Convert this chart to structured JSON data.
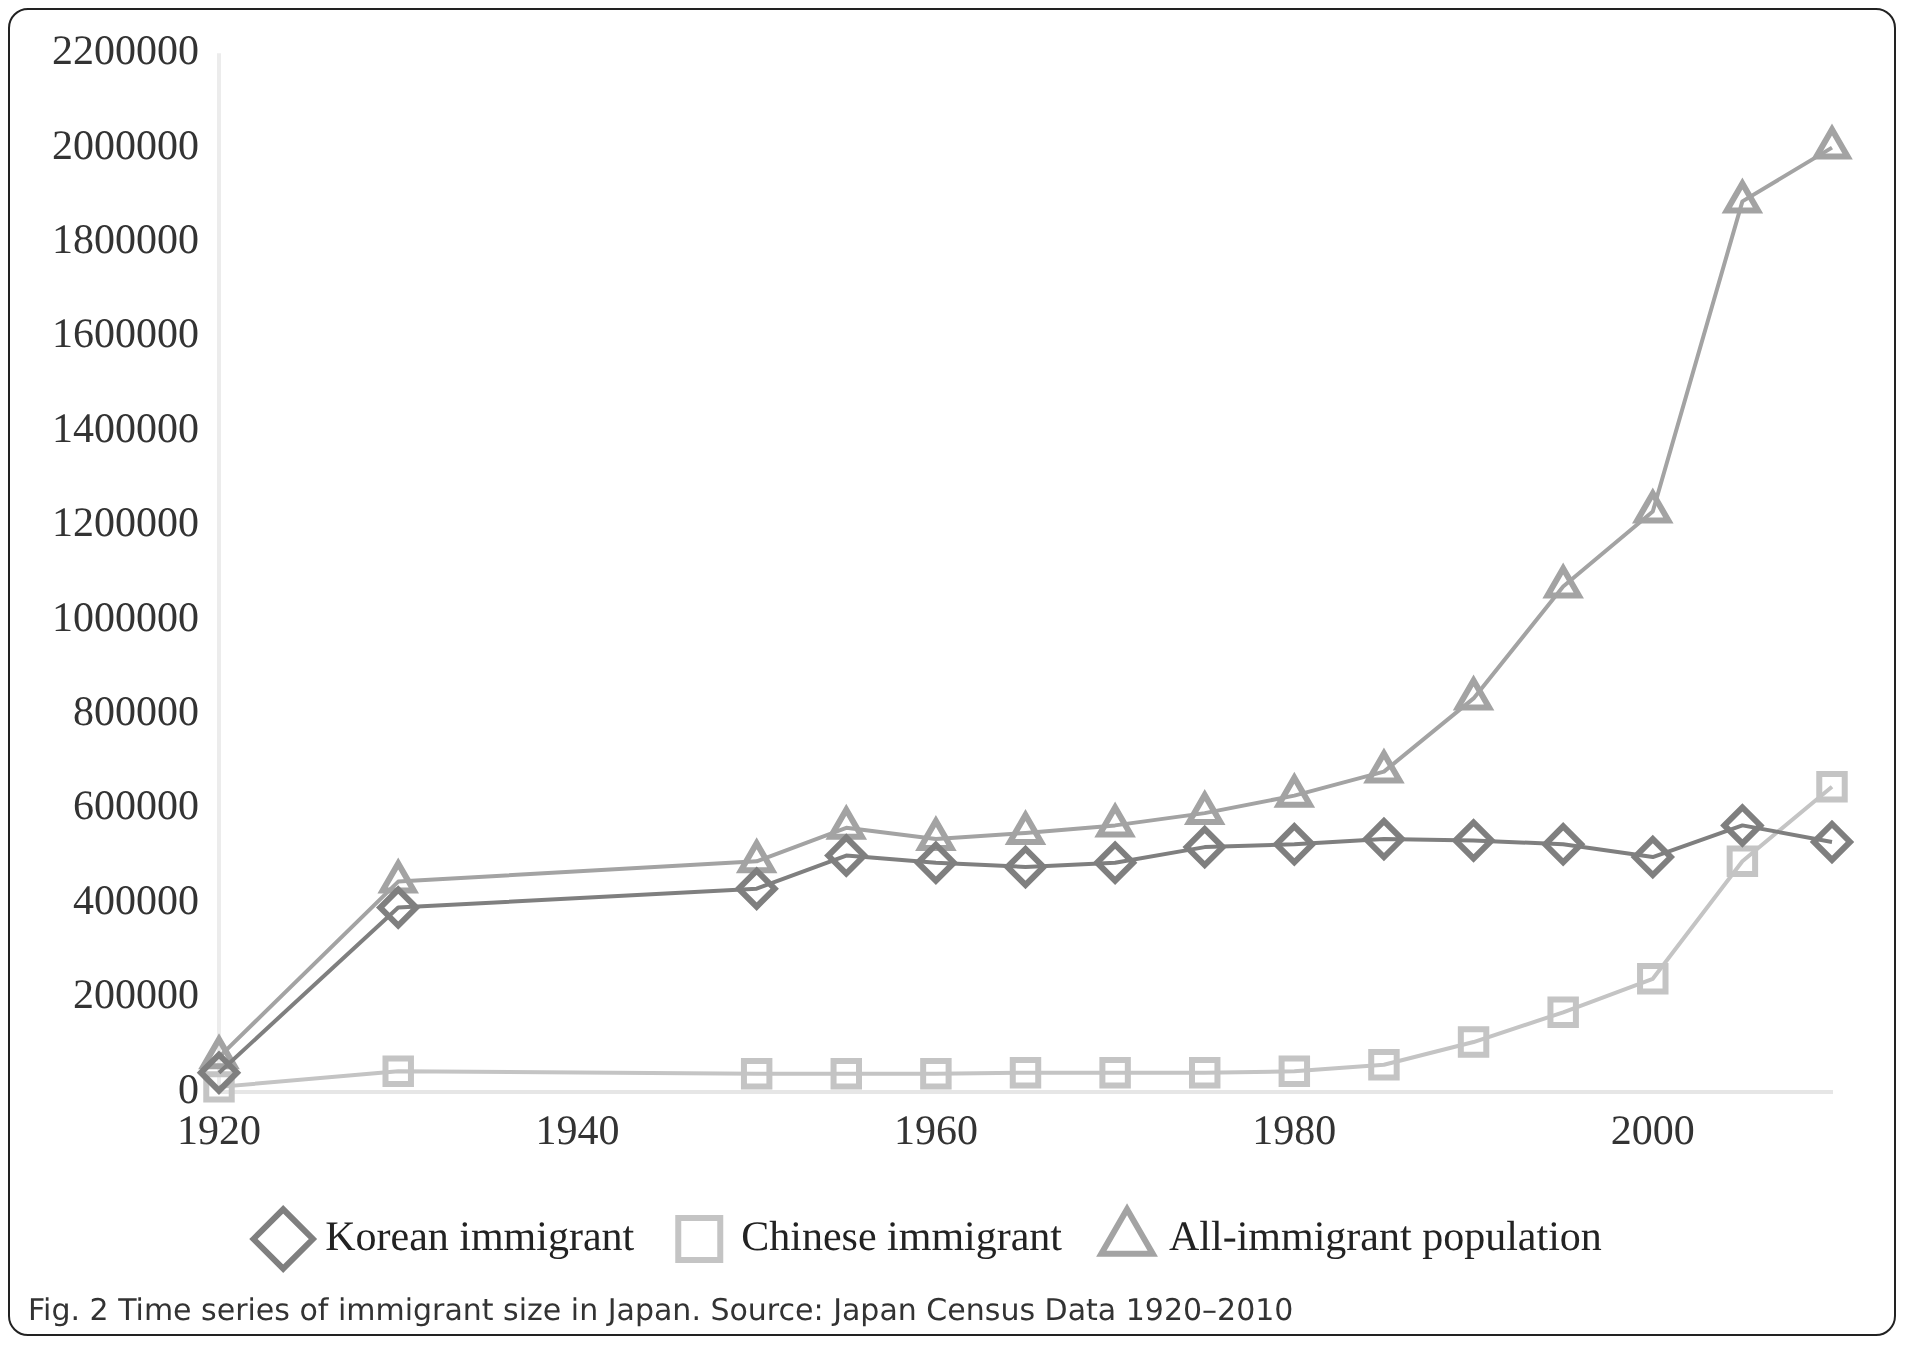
{
  "chart_data": {
    "type": "line",
    "x": [
      1920,
      1930,
      1950,
      1955,
      1960,
      1965,
      1970,
      1975,
      1980,
      1985,
      1990,
      1995,
      2000,
      2005,
      2010
    ],
    "series": [
      {
        "name": "Korean immigrant",
        "color": "#7f7f7f",
        "marker": "diamond",
        "values": [
          40000,
          390000,
          430000,
          500000,
          485000,
          476000,
          485000,
          518000,
          524000,
          535000,
          532000,
          524000,
          497000,
          564000,
          529000
        ]
      },
      {
        "name": "Chinese immigrant",
        "color": "#c4c4c4",
        "marker": "square",
        "values": [
          10000,
          43000,
          38000,
          38000,
          38000,
          40000,
          40000,
          40000,
          43000,
          57000,
          105000,
          168000,
          239000,
          488000,
          646000
        ]
      },
      {
        "name": "All-immigrant population",
        "color": "#a3a3a3",
        "marker": "triangle",
        "values": [
          73000,
          445000,
          488000,
          559000,
          535000,
          548000,
          564000,
          590000,
          627000,
          678000,
          833000,
          1070000,
          1229000,
          1886000,
          2000000
        ]
      }
    ],
    "xlim": [
      1920,
      2010
    ],
    "xticks": [
      1920,
      1940,
      1960,
      1980,
      2000
    ],
    "ylim": [
      0,
      2200000
    ],
    "yticks": [
      0,
      200000,
      400000,
      600000,
      800000,
      1000000,
      1200000,
      1400000,
      1600000,
      1800000,
      2000000,
      2200000
    ],
    "grid": false,
    "legend": "bottom",
    "annotations": [
      "Fig. 2 Time series of immigrant size in Japan. Source: Japan Census Data 1920–2010"
    ]
  }
}
